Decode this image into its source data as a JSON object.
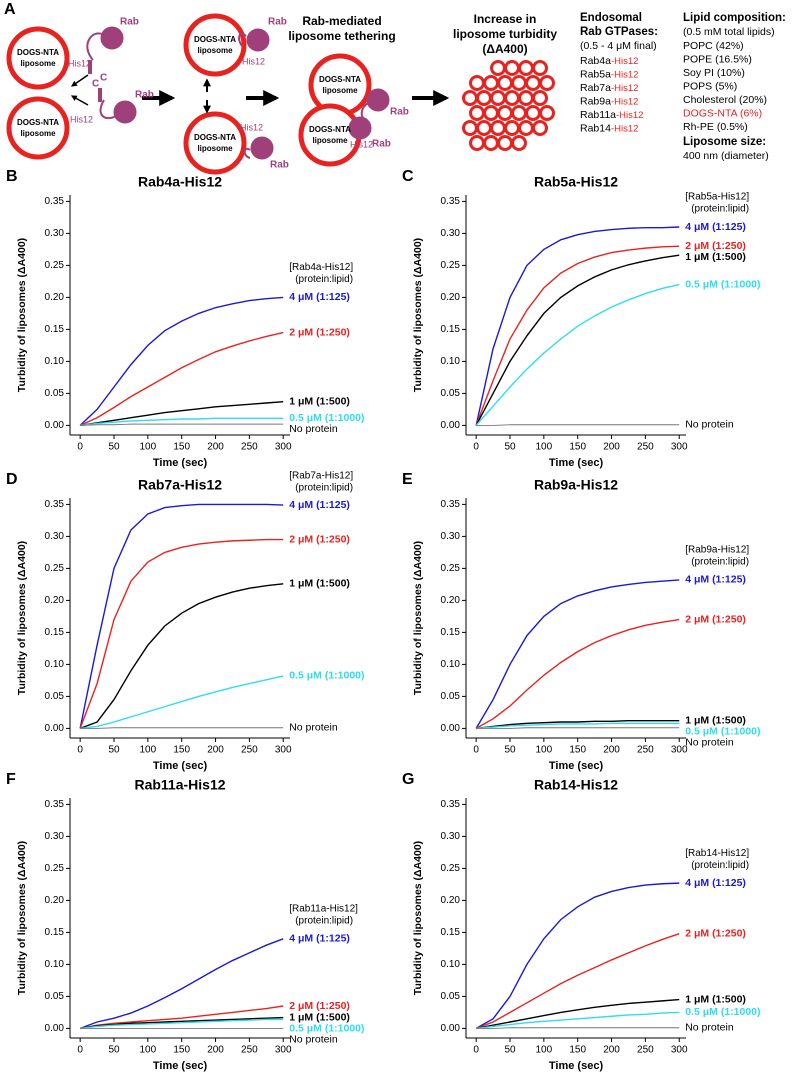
{
  "schematic": {
    "panel": "A",
    "liposome_label": [
      "DOGS-NTA",
      "liposome"
    ],
    "rab": "Rab",
    "his": "His12",
    "c_term": "C",
    "tethering_title": [
      "Rab-mediated",
      "liposome tethering"
    ],
    "turbidity_title": [
      "Increase in",
      "liposome turbidity",
      "(ΔA400)"
    ],
    "rab_heading": [
      "Endosomal",
      "Rab GTPases:"
    ],
    "rab_conc": "(0.5 - 4 μM final)",
    "rab_list": [
      {
        "name": "Rab4a",
        "tag": "-His12"
      },
      {
        "name": "Rab5a",
        "tag": "-His12"
      },
      {
        "name": "Rab7a",
        "tag": "-His12"
      },
      {
        "name": "Rab9a",
        "tag": "-His12"
      },
      {
        "name": "Rab11a",
        "tag": "-His12"
      },
      {
        "name": "Rab14",
        "tag": "-His12"
      }
    ],
    "lipid_heading": "Lipid composition:",
    "lipid_total": "(0.5 mM total lipids)",
    "lipids": [
      {
        "text": "POPC (42%)",
        "color": "#000000"
      },
      {
        "text": "POPE (16.5%)",
        "color": "#000000"
      },
      {
        "text": "Soy PI (10%)",
        "color": "#000000"
      },
      {
        "text": "POPS (5%)",
        "color": "#000000"
      },
      {
        "text": "Cholesterol (20%)",
        "color": "#000000"
      },
      {
        "text": "DOGS-NTA (6%)",
        "color": "#e8231f"
      },
      {
        "text": "Rh-PE (0.5%)",
        "color": "#000000"
      }
    ],
    "size_heading": "Liposome size:",
    "size_value": "400 nm (diameter)"
  },
  "chart_data": [
    {
      "type": "line",
      "panel": "B",
      "title": "Rab4a-His12",
      "legend_title": "[Rab4a-His12]",
      "legend_subtitle": "(protein:lipid)",
      "x_label": "Time (sec)",
      "y_label": "Turbidity of liposomes (ΔA400)",
      "xlim": [
        -15,
        310
      ],
      "ylim": [
        -0.015,
        0.36
      ],
      "xticks": [
        0,
        50,
        100,
        150,
        200,
        250,
        300
      ],
      "yticks": [
        {
          "value": 0,
          "label": "0.00"
        },
        0.05,
        {
          "value": 0.1,
          "label": "0.10"
        },
        0.15,
        {
          "value": 0.2,
          "label": "0.20"
        },
        0.25,
        {
          "value": 0.3,
          "label": "0.30"
        },
        0.35
      ],
      "x": [
        0,
        25,
        50,
        75,
        100,
        125,
        150,
        175,
        200,
        225,
        250,
        275,
        300
      ],
      "series": [
        {
          "name": "4 μM (1:125)",
          "color": "#1a1ad6",
          "values": [
            0,
            0.025,
            0.06,
            0.095,
            0.125,
            0.148,
            0.163,
            0.175,
            0.184,
            0.19,
            0.195,
            0.198,
            0.2
          ]
        },
        {
          "name": "2 μM (1:250)",
          "color": "#e8231f",
          "values": [
            0,
            0.012,
            0.028,
            0.045,
            0.06,
            0.075,
            0.09,
            0.103,
            0.115,
            0.124,
            0.132,
            0.139,
            0.145
          ]
        },
        {
          "name": "1 μM (1:500)",
          "color": "#000000",
          "values": [
            0,
            0.004,
            0.008,
            0.012,
            0.016,
            0.02,
            0.023,
            0.026,
            0.029,
            0.031,
            0.033,
            0.035,
            0.037
          ]
        },
        {
          "name": "0.5 μM (1:1000)",
          "color": "#2fdcef",
          "values": [
            0,
            0.003,
            0.005,
            0.007,
            0.008,
            0.009,
            0.01,
            0.01,
            0.011,
            0.011,
            0.011,
            0.011,
            0.011
          ]
        },
        {
          "name": "No protein",
          "color": "#777777",
          "label_color": "#000000",
          "values": [
            0,
            0.001,
            0.001,
            0.002,
            0.002,
            0.002,
            0.002,
            0.002,
            0.002,
            0.002,
            0.002,
            0.002,
            0.002
          ]
        }
      ]
    },
    {
      "type": "line",
      "panel": "C",
      "title": "Rab5a-His12",
      "legend_title": "[Rab5a-His12]",
      "legend_subtitle": "(protein:lipid)",
      "x_label": "Time (sec)",
      "y_label": "Turbidity of liposomes (ΔA400)",
      "xlim": [
        -15,
        310
      ],
      "ylim": [
        -0.015,
        0.36
      ],
      "xticks": [
        0,
        50,
        100,
        150,
        200,
        250,
        300
      ],
      "yticks": [
        {
          "value": 0,
          "label": "0.00"
        },
        0.05,
        {
          "value": 0.1,
          "label": "0.10"
        },
        0.15,
        {
          "value": 0.2,
          "label": "0.20"
        },
        0.25,
        {
          "value": 0.3,
          "label": "0.30"
        },
        0.35
      ],
      "x": [
        0,
        25,
        50,
        75,
        100,
        125,
        150,
        175,
        200,
        225,
        250,
        275,
        300
      ],
      "series": [
        {
          "name": "4 μM (1:125)",
          "color": "#1a1ad6",
          "values": [
            0,
            0.12,
            0.2,
            0.25,
            0.275,
            0.29,
            0.298,
            0.303,
            0.306,
            0.308,
            0.309,
            0.309,
            0.31
          ]
        },
        {
          "name": "2 μM (1:250)",
          "color": "#e8231f",
          "values": [
            0,
            0.07,
            0.135,
            0.18,
            0.215,
            0.238,
            0.253,
            0.263,
            0.27,
            0.274,
            0.277,
            0.279,
            0.28
          ]
        },
        {
          "name": "1 μM (1:500)",
          "color": "#000000",
          "values": [
            0,
            0.05,
            0.1,
            0.14,
            0.175,
            0.2,
            0.218,
            0.232,
            0.243,
            0.251,
            0.257,
            0.262,
            0.266
          ]
        },
        {
          "name": "0.5 μM (1:1000)",
          "color": "#2fdcef",
          "values": [
            0,
            0.03,
            0.06,
            0.088,
            0.113,
            0.135,
            0.155,
            0.171,
            0.185,
            0.196,
            0.206,
            0.214,
            0.22
          ]
        },
        {
          "name": "No protein",
          "color": "#777777",
          "label_color": "#000000",
          "values": [
            0,
            0,
            0.001,
            0.001,
            0.001,
            0.001,
            0.001,
            0.001,
            0.001,
            0.001,
            0.001,
            0.001,
            0.001
          ]
        }
      ]
    },
    {
      "type": "line",
      "panel": "D",
      "title": "Rab7a-His12",
      "legend_title": "[Rab7a-His12]",
      "legend_subtitle": "(protein:lipid)",
      "x_label": "Time (sec)",
      "y_label": "Turbidity of liposomes (ΔA400)",
      "xlim": [
        -15,
        310
      ],
      "ylim": [
        -0.015,
        0.36
      ],
      "xticks": [
        0,
        50,
        100,
        150,
        200,
        250,
        300
      ],
      "yticks": [
        {
          "value": 0,
          "label": "0.00"
        },
        0.05,
        {
          "value": 0.1,
          "label": "0.10"
        },
        0.15,
        {
          "value": 0.2,
          "label": "0.20"
        },
        0.25,
        {
          "value": 0.3,
          "label": "0.30"
        },
        0.35
      ],
      "x": [
        0,
        25,
        50,
        75,
        100,
        125,
        150,
        175,
        200,
        225,
        250,
        275,
        300
      ],
      "series": [
        {
          "name": "4 μM (1:125)",
          "color": "#1a1ad6",
          "values": [
            0,
            0.13,
            0.25,
            0.31,
            0.335,
            0.345,
            0.348,
            0.35,
            0.35,
            0.35,
            0.35,
            0.35,
            0.349
          ]
        },
        {
          "name": "2 μM (1:250)",
          "color": "#e8231f",
          "values": [
            0,
            0.07,
            0.17,
            0.23,
            0.26,
            0.275,
            0.283,
            0.288,
            0.291,
            0.293,
            0.294,
            0.295,
            0.295
          ]
        },
        {
          "name": "1 μM (1:500)",
          "color": "#000000",
          "values": [
            0,
            0.01,
            0.045,
            0.09,
            0.13,
            0.16,
            0.18,
            0.195,
            0.205,
            0.213,
            0.219,
            0.223,
            0.226
          ]
        },
        {
          "name": "0.5 μM (1:1000)",
          "color": "#2fdcef",
          "values": [
            0,
            0.003,
            0.01,
            0.018,
            0.026,
            0.034,
            0.042,
            0.05,
            0.057,
            0.064,
            0.07,
            0.076,
            0.082
          ]
        },
        {
          "name": "No protein",
          "color": "#777777",
          "label_color": "#000000",
          "values": [
            0,
            0,
            0.001,
            0.001,
            0.001,
            0.001,
            0.001,
            0.001,
            0.001,
            0.001,
            0.001,
            0.001,
            0.001
          ]
        }
      ]
    },
    {
      "type": "line",
      "panel": "E",
      "title": "Rab9a-His12",
      "legend_title": "[Rab9a-His12]",
      "legend_subtitle": "(protein:lipid)",
      "x_label": "Time (sec)",
      "y_label": "Turbidity of liposomes (ΔA400)",
      "xlim": [
        -15,
        310
      ],
      "ylim": [
        -0.015,
        0.36
      ],
      "xticks": [
        0,
        50,
        100,
        150,
        200,
        250,
        300
      ],
      "yticks": [
        {
          "value": 0,
          "label": "0.00"
        },
        0.05,
        {
          "value": 0.1,
          "label": "0.10"
        },
        0.15,
        {
          "value": 0.2,
          "label": "0.20"
        },
        0.25,
        {
          "value": 0.3,
          "label": "0.30"
        },
        0.35
      ],
      "x": [
        0,
        25,
        50,
        75,
        100,
        125,
        150,
        175,
        200,
        225,
        250,
        275,
        300
      ],
      "series": [
        {
          "name": "4 μM (1:125)",
          "color": "#1a1ad6",
          "values": [
            0,
            0.045,
            0.1,
            0.145,
            0.175,
            0.195,
            0.207,
            0.215,
            0.221,
            0.225,
            0.228,
            0.23,
            0.232
          ]
        },
        {
          "name": "2 μM (1:250)",
          "color": "#e8231f",
          "values": [
            0,
            0.015,
            0.035,
            0.06,
            0.083,
            0.103,
            0.12,
            0.134,
            0.145,
            0.154,
            0.161,
            0.166,
            0.17
          ]
        },
        {
          "name": "1 μM (1:500)",
          "color": "#000000",
          "values": [
            0,
            0.003,
            0.006,
            0.008,
            0.009,
            0.01,
            0.01,
            0.011,
            0.011,
            0.012,
            0.012,
            0.012,
            0.012
          ]
        },
        {
          "name": "0.5 μM (1:1000)",
          "color": "#2fdcef",
          "values": [
            0,
            0.002,
            0.004,
            0.005,
            0.006,
            0.007,
            0.007,
            0.007,
            0.008,
            0.008,
            0.008,
            0.008,
            0.008
          ]
        },
        {
          "name": "No protein",
          "color": "#777777",
          "label_color": "#000000",
          "values": [
            0,
            0,
            0,
            0.001,
            0.001,
            0.001,
            0.001,
            0.001,
            0.001,
            0.001,
            0.001,
            0.001,
            0.001
          ]
        }
      ]
    },
    {
      "type": "line",
      "panel": "F",
      "title": "Rab11a-His12",
      "legend_title": "[Rab11a-His12]",
      "legend_subtitle": "(protein:lipid)",
      "x_label": "Time (sec)",
      "y_label": "Turbidity of liposomes (ΔA400)",
      "xlim": [
        -15,
        310
      ],
      "ylim": [
        -0.015,
        0.36
      ],
      "xticks": [
        0,
        50,
        100,
        150,
        200,
        250,
        300
      ],
      "yticks": [
        {
          "value": 0,
          "label": "0.00"
        },
        0.05,
        {
          "value": 0.1,
          "label": "0.10"
        },
        0.15,
        {
          "value": 0.2,
          "label": "0.20"
        },
        0.25,
        {
          "value": 0.3,
          "label": "0.30"
        },
        0.35
      ],
      "x": [
        0,
        25,
        50,
        75,
        100,
        125,
        150,
        175,
        200,
        225,
        250,
        275,
        300
      ],
      "series": [
        {
          "name": "4 μM (1:125)",
          "color": "#1a1ad6",
          "values": [
            0,
            0.01,
            0.016,
            0.024,
            0.035,
            0.048,
            0.062,
            0.077,
            0.092,
            0.106,
            0.118,
            0.13,
            0.14
          ]
        },
        {
          "name": "2 μM (1:250)",
          "color": "#e8231f",
          "values": [
            0,
            0.005,
            0.008,
            0.01,
            0.012,
            0.014,
            0.016,
            0.019,
            0.022,
            0.025,
            0.028,
            0.031,
            0.035
          ]
        },
        {
          "name": "1 μM (1:500)",
          "color": "#000000",
          "values": [
            0,
            0.004,
            0.006,
            0.008,
            0.009,
            0.01,
            0.011,
            0.012,
            0.013,
            0.014,
            0.015,
            0.016,
            0.017
          ]
        },
        {
          "name": "0.5 μM (1:1000)",
          "color": "#2fdcef",
          "values": [
            0,
            0.003,
            0.005,
            0.006,
            0.007,
            0.008,
            0.009,
            0.01,
            0.011,
            0.012,
            0.013,
            0.014,
            0.014
          ]
        },
        {
          "name": "No protein",
          "color": "#777777",
          "label_color": "#000000",
          "values": [
            0,
            0,
            0,
            0,
            0,
            0,
            0,
            0,
            0,
            0,
            0,
            0,
            0
          ]
        }
      ]
    },
    {
      "type": "line",
      "panel": "G",
      "title": "Rab14-His12",
      "legend_title": "[Rab14-His12]",
      "legend_subtitle": "(protein:lipid)",
      "x_label": "Time (sec)",
      "y_label": "Turbidity of liposomes (ΔA400)",
      "xlim": [
        -15,
        310
      ],
      "ylim": [
        -0.015,
        0.36
      ],
      "xticks": [
        0,
        50,
        100,
        150,
        200,
        250,
        300
      ],
      "yticks": [
        {
          "value": 0,
          "label": "0.00"
        },
        0.05,
        {
          "value": 0.1,
          "label": "0.10"
        },
        0.15,
        {
          "value": 0.2,
          "label": "0.20"
        },
        0.25,
        {
          "value": 0.3,
          "label": "0.30"
        },
        0.35
      ],
      "x": [
        0,
        25,
        50,
        75,
        100,
        125,
        150,
        175,
        200,
        225,
        250,
        275,
        300
      ],
      "series": [
        {
          "name": "4 μM (1:125)",
          "color": "#1a1ad6",
          "values": [
            0,
            0.015,
            0.05,
            0.1,
            0.14,
            0.17,
            0.19,
            0.205,
            0.214,
            0.22,
            0.224,
            0.226,
            0.227
          ]
        },
        {
          "name": "2 μM (1:250)",
          "color": "#e8231f",
          "values": [
            0,
            0.01,
            0.025,
            0.04,
            0.055,
            0.07,
            0.083,
            0.095,
            0.107,
            0.118,
            0.129,
            0.139,
            0.148
          ]
        },
        {
          "name": "1 μM (1:500)",
          "color": "#000000",
          "values": [
            0,
            0.005,
            0.01,
            0.015,
            0.02,
            0.025,
            0.029,
            0.033,
            0.036,
            0.039,
            0.041,
            0.043,
            0.045
          ]
        },
        {
          "name": "0.5 μM (1:1000)",
          "color": "#2fdcef",
          "values": [
            0,
            0.003,
            0.006,
            0.009,
            0.011,
            0.013,
            0.015,
            0.017,
            0.019,
            0.021,
            0.022,
            0.024,
            0.025
          ]
        },
        {
          "name": "No protein",
          "color": "#777777",
          "label_color": "#000000",
          "values": [
            0,
            0,
            0.001,
            0.001,
            0.001,
            0.001,
            0.001,
            0.001,
            0.001,
            0.001,
            0.001,
            0.001,
            0.001
          ]
        }
      ]
    }
  ]
}
